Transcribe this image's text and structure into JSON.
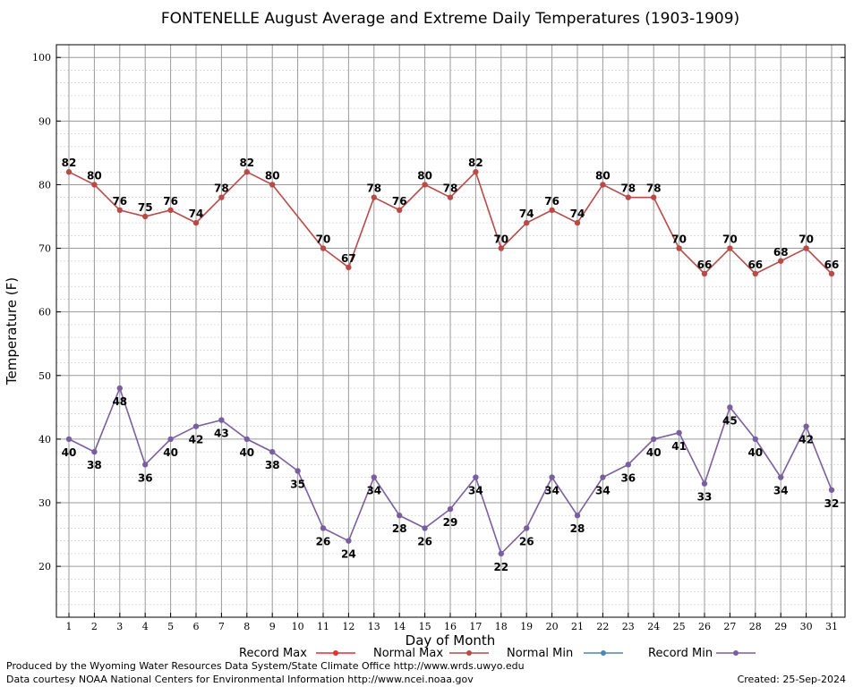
{
  "chart_data": {
    "type": "line",
    "title": "FONTENELLE August Average and Extreme Daily Temperatures (1903-1909)",
    "xlabel": "Day of Month",
    "ylabel": "Temperature (F)",
    "x": [
      1,
      2,
      3,
      4,
      5,
      6,
      7,
      8,
      9,
      10,
      11,
      12,
      13,
      14,
      15,
      16,
      17,
      18,
      19,
      20,
      21,
      22,
      23,
      24,
      25,
      26,
      27,
      28,
      29,
      30,
      31
    ],
    "xlim": [
      1,
      31
    ],
    "ylim": [
      12,
      102
    ],
    "yticks": [
      20,
      30,
      40,
      50,
      60,
      70,
      80,
      90,
      100
    ],
    "grid": true,
    "legend_placement": "bottom",
    "series": [
      {
        "name": "Normal Max",
        "color": "#b84a48",
        "values": [
          82,
          80,
          76,
          75,
          76,
          74,
          78,
          82,
          80,
          null,
          70,
          67,
          78,
          76,
          80,
          78,
          82,
          70,
          74,
          76,
          74,
          80,
          78,
          78,
          70,
          66,
          70,
          66,
          68,
          70,
          66
        ],
        "labels": [
          82,
          80,
          76,
          75,
          76,
          74,
          78,
          82,
          80,
          null,
          70,
          67,
          78,
          76,
          80,
          78,
          82,
          70,
          74,
          76,
          74,
          80,
          78,
          78,
          70,
          66,
          70,
          66,
          68,
          70,
          66
        ]
      },
      {
        "name": "Record Min",
        "color": "#7a5fa0",
        "values": [
          40,
          38,
          48,
          36,
          40,
          42,
          43,
          40,
          38,
          35,
          26,
          24,
          34,
          28,
          26,
          29,
          34,
          22,
          26,
          34,
          28,
          34,
          36,
          40,
          41,
          33,
          45,
          40,
          34,
          42,
          32
        ],
        "labels": [
          40,
          38,
          48,
          36,
          40,
          42,
          43,
          40,
          38,
          35,
          26,
          24,
          34,
          28,
          26,
          29,
          34,
          22,
          26,
          34,
          28,
          34,
          36,
          40,
          41,
          33,
          45,
          40,
          34,
          42,
          32
        ]
      }
    ]
  },
  "legend": [
    {
      "name": "Record Max",
      "color": "#e03030"
    },
    {
      "name": "Normal Max",
      "color": "#b84a48"
    },
    {
      "name": "Normal Min",
      "color": "#4a86b8"
    },
    {
      "name": "Record Min",
      "color": "#7a5fa0"
    }
  ],
  "footer": {
    "produced": "Produced by the Wyoming Water Resources Data System/State Climate Office http://www.wrds.uwyo.edu",
    "courtesy": "Data courtesy NOAA National Centers for Environmental Information http://www.ncei.noaa.gov",
    "created": "Created: 25-Sep-2024"
  }
}
